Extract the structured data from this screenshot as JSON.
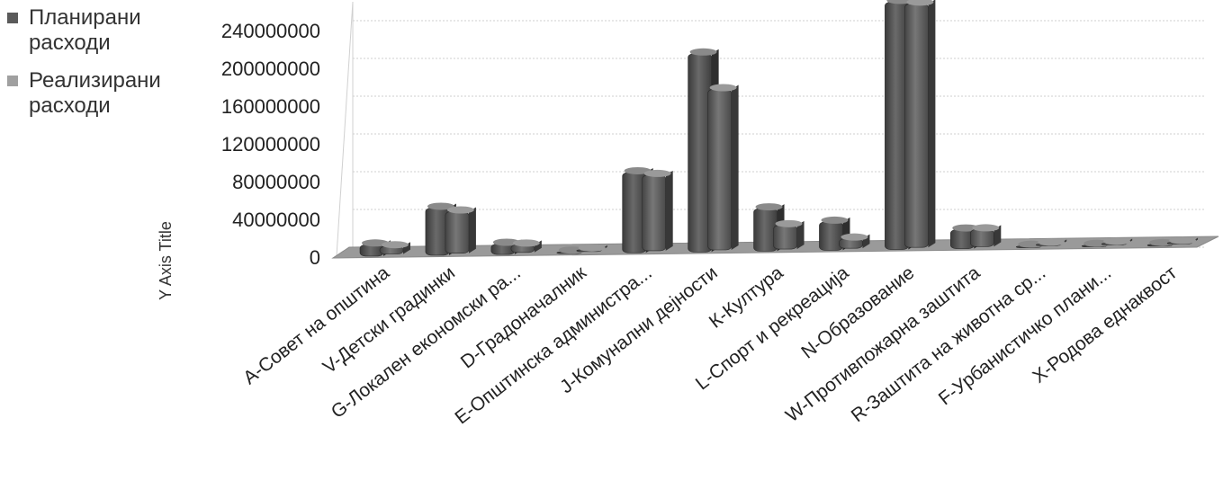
{
  "chart_data": {
    "type": "bar",
    "ylabel": "Y Axis Title",
    "ylim": [
      0,
      260000000
    ],
    "yticks": [
      0,
      40000000,
      80000000,
      120000000,
      160000000,
      200000000,
      240000000
    ],
    "ytick_labels": [
      "0",
      "40000000",
      "80000000",
      "120000000",
      "160000000",
      "200000000",
      "240000000"
    ],
    "grid": true,
    "legend": "top-left",
    "categories": [
      "A-Совет на општина",
      "V-Детски градинки",
      "G-Локален економски ра...",
      "D-Градоначалник",
      "Е-Општинска администра...",
      "J-Комунални дејности",
      "К-Култура",
      "L-Спорт и рекреација",
      "N-Образование",
      "W-Противпожарна заштита",
      "R-Заштита на животна ср...",
      "F-Урбанистичко плани...",
      "Х-Родова еднаквост"
    ],
    "series": [
      {
        "name": "Планирани расходи",
        "color": "#5a5a5a",
        "values": [
          12000000,
          50000000,
          11000000,
          1500000,
          85000000,
          210000000,
          45000000,
          30000000,
          262000000,
          20000000,
          1200000,
          1000000,
          800000
        ]
      },
      {
        "name": "Реализирани расходи",
        "color": "#8e8e8e",
        "values": [
          8000000,
          44000000,
          8000000,
          1200000,
          80000000,
          170000000,
          25000000,
          10000000,
          258000000,
          18000000,
          900000,
          800000,
          600000
        ]
      }
    ]
  }
}
